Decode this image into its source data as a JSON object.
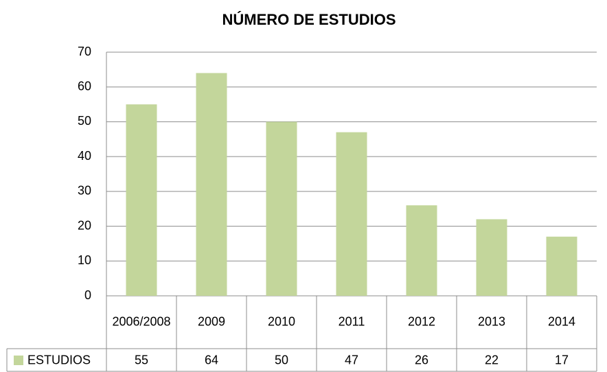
{
  "chart_data": {
    "type": "bar",
    "title": "NÚMERO DE ESTUDIOS",
    "categories": [
      "2006/2008",
      "2009",
      "2010",
      "2011",
      "2012",
      "2013",
      "2014"
    ],
    "series": [
      {
        "name": "ESTUDIOS",
        "color": "#c3d69b",
        "values": [
          55,
          64,
          50,
          47,
          26,
          22,
          17
        ]
      }
    ],
    "ylim": [
      0,
      70
    ],
    "yticks": [
      0,
      10,
      20,
      30,
      40,
      50,
      60,
      70
    ],
    "grid": true,
    "legend": "data-table"
  }
}
